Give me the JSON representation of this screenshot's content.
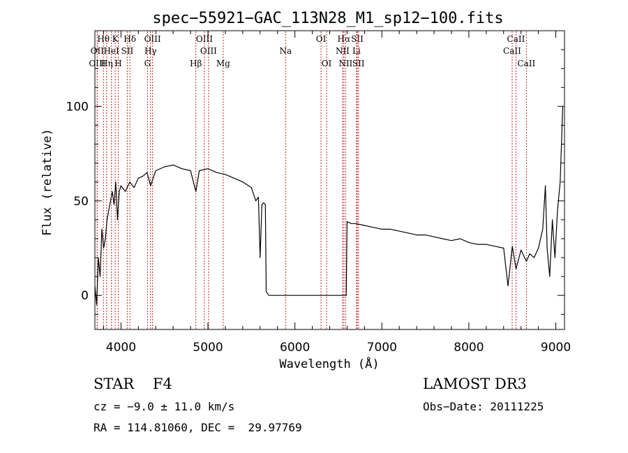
{
  "chart_data": {
    "type": "line",
    "title": "spec−55921−GAC_113N28_M1_sp12−100.fits",
    "xlabel": "Wavelength (Å)",
    "ylabel": "Flux (relative)",
    "xlim": [
      3700,
      9100
    ],
    "ylim": [
      -18,
      140
    ],
    "xticks": [
      4000,
      5000,
      6000,
      7000,
      8000,
      9000
    ],
    "yticks": [
      0,
      50,
      100
    ],
    "series": [
      {
        "name": "flux",
        "x": [
          3700,
          3720,
          3740,
          3760,
          3780,
          3800,
          3820,
          3840,
          3860,
          3880,
          3900,
          3920,
          3940,
          3960,
          3980,
          4000,
          4050,
          4100,
          4150,
          4200,
          4250,
          4300,
          4340,
          4400,
          4500,
          4600,
          4700,
          4800,
          4861,
          4900,
          5000,
          5100,
          5200,
          5300,
          5400,
          5500,
          5550,
          5580,
          5600,
          5620,
          5640,
          5660,
          5670,
          5700,
          6000,
          6300,
          6560,
          6580,
          6590,
          6600,
          6650,
          6700,
          6800,
          6900,
          7000,
          7100,
          7200,
          7300,
          7400,
          7500,
          7600,
          7700,
          7800,
          7900,
          8000,
          8100,
          8200,
          8300,
          8400,
          8450,
          8500,
          8542,
          8600,
          8662,
          8700,
          8750,
          8800,
          8850,
          8880,
          8900,
          8930,
          8960,
          8990,
          9020,
          9050,
          9080
        ],
        "y": [
          5,
          -5,
          20,
          10,
          35,
          25,
          30,
          40,
          45,
          50,
          55,
          48,
          60,
          40,
          55,
          58,
          55,
          60,
          57,
          62,
          63,
          65,
          58,
          66,
          68,
          69,
          67,
          66,
          55,
          66,
          67,
          65,
          64,
          62,
          60,
          57,
          50,
          52,
          20,
          48,
          49,
          48,
          2,
          0,
          0,
          0,
          0,
          0,
          0,
          39,
          38,
          38,
          37,
          36,
          35,
          35,
          34,
          33,
          32,
          32,
          31,
          30,
          29,
          30,
          28,
          27,
          27,
          26,
          25,
          5,
          26,
          14,
          24,
          18,
          22,
          20,
          25,
          35,
          58,
          25,
          10,
          40,
          20,
          45,
          60,
          100
        ]
      }
    ],
    "lines": [
      {
        "label": "Hθ",
        "wavelength": 3798,
        "row": 0
      },
      {
        "label": "K",
        "wavelength": 3934,
        "row": 0
      },
      {
        "label": "Hδ",
        "wavelength": 4102,
        "row": 0
      },
      {
        "label": "OIII",
        "wavelength": 4363,
        "row": 0
      },
      {
        "label": "OIII",
        "wavelength": 4959,
        "row": 0
      },
      {
        "label": "OI",
        "wavelength": 6300,
        "row": 0
      },
      {
        "label": "Hα",
        "wavelength": 6563,
        "row": 0
      },
      {
        "label": "SII",
        "wavelength": 6717,
        "row": 0
      },
      {
        "label": "CaII",
        "wavelength": 8542,
        "row": 0
      },
      {
        "label": "OII",
        "wavelength": 3727,
        "row": 1
      },
      {
        "label": "HeI",
        "wavelength": 3889,
        "row": 1
      },
      {
        "label": "SII",
        "wavelength": 4072,
        "row": 1
      },
      {
        "label": "Hγ",
        "wavelength": 4340,
        "row": 1
      },
      {
        "label": "OIII",
        "wavelength": 5007,
        "row": 1
      },
      {
        "label": "Na",
        "wavelength": 5893,
        "row": 1
      },
      {
        "label": "NII",
        "wavelength": 6548,
        "row": 1
      },
      {
        "label": "Li",
        "wavelength": 6708,
        "row": 1
      },
      {
        "label": "CaII",
        "wavelength": 8498,
        "row": 1
      },
      {
        "label": "OIII",
        "wavelength": 3727,
        "row": 2
      },
      {
        "label": "Hη",
        "wavelength": 3835,
        "row": 2
      },
      {
        "label": "H",
        "wavelength": 3969,
        "row": 2
      },
      {
        "label": "G",
        "wavelength": 4305,
        "row": 2
      },
      {
        "label": "Hβ",
        "wavelength": 4861,
        "row": 2
      },
      {
        "label": "Mg",
        "wavelength": 5175,
        "row": 2
      },
      {
        "label": "OI",
        "wavelength": 6364,
        "row": 2
      },
      {
        "label": "NII",
        "wavelength": 6583,
        "row": 2
      },
      {
        "label": "SII",
        "wavelength": 6731,
        "row": 2
      },
      {
        "label": "CaII",
        "wavelength": 8662,
        "row": 2
      }
    ]
  },
  "info": {
    "object_type": "STAR    F4",
    "survey": "LAMOST DR3",
    "cz": "cz = −9.0 ± 11.0 km/s",
    "obs_date": "Obs−Date: 20111225",
    "radec": "RA = 114.81060, DEC =  29.97769"
  }
}
